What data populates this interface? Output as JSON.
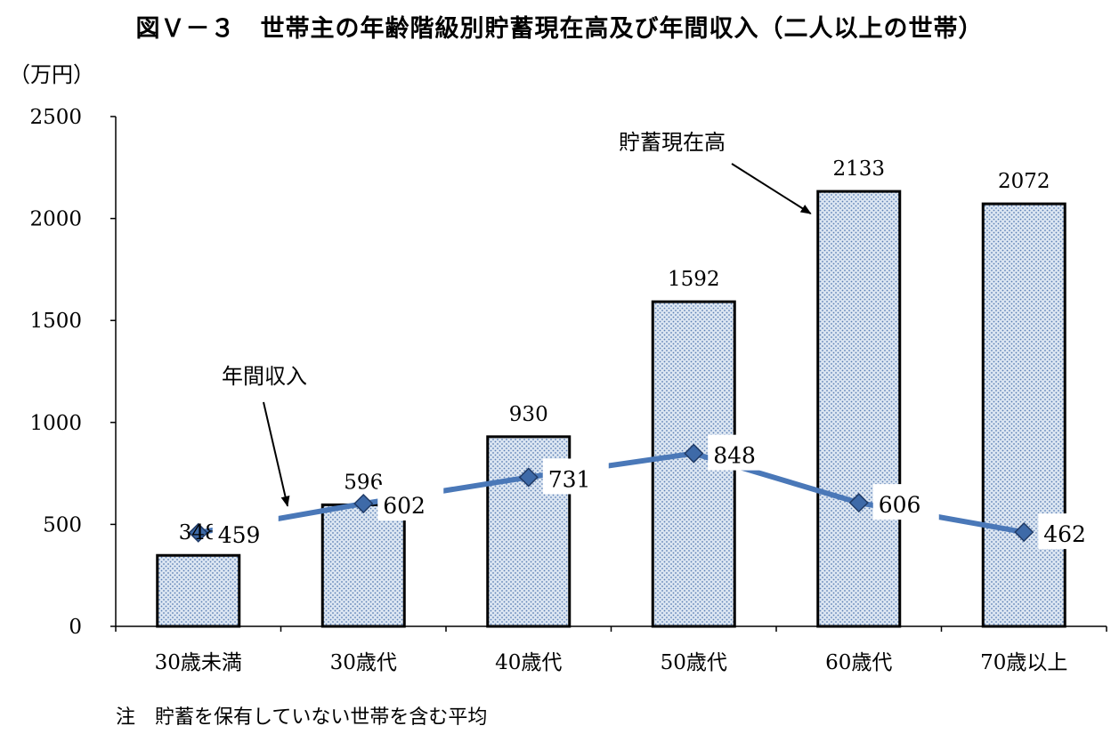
{
  "title": "図Ｖ－３　世帯主の年齢階級別貯蓄現在高及び年間収入（二人以上の世帯）",
  "unit": "（万円）",
  "note": "注　貯蓄を保有していない世帯を含む平均",
  "chart_data": {
    "type": "bar",
    "categories": [
      "30歳未満",
      "30歳代",
      "40歳代",
      "50歳代",
      "60歳代",
      "70歳以上"
    ],
    "ylim": [
      0,
      2500
    ],
    "yticks": [
      0,
      500,
      1000,
      1500,
      2000,
      2500
    ],
    "grid": false,
    "series": [
      {
        "name": "貯蓄現在高",
        "type": "bar",
        "values": [
          348,
          596,
          930,
          1592,
          2133,
          2072
        ]
      },
      {
        "name": "年間収入",
        "type": "line",
        "values": [
          459,
          602,
          731,
          848,
          606,
          462
        ]
      }
    ],
    "annotations": [
      {
        "text": "貯蓄現在高",
        "target": "bar",
        "category_index": 4
      },
      {
        "text": "年間収入",
        "target": "line",
        "category_index": 0
      }
    ],
    "colors": {
      "bar_fill": "#dce6f2",
      "bar_dots": "#5b7fb5",
      "line": "#4a78b8",
      "marker": "#3e6aa8"
    }
  }
}
